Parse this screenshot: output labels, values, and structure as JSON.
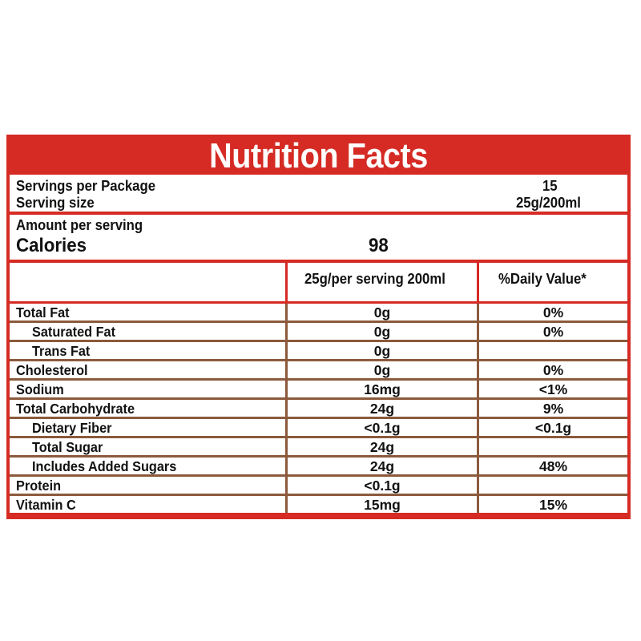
{
  "title": "Nutrition Facts",
  "servings": {
    "per_package_label": "Servings per Package",
    "per_package_value": "15",
    "size_label": "Serving size",
    "size_value": "25g/200ml"
  },
  "amount": {
    "label": "Amount per serving",
    "calories_label": "Calories",
    "calories_value": "98"
  },
  "columns": {
    "amount_header": "25g/per serving 200ml",
    "dv_header": "%Daily Value*"
  },
  "rows": [
    {
      "name": "Total Fat",
      "amount": "0g",
      "dv": "0%",
      "indent": false
    },
    {
      "name": "Saturated Fat",
      "amount": "0g",
      "dv": "0%",
      "indent": true
    },
    {
      "name": "Trans Fat",
      "amount": "0g",
      "dv": "",
      "indent": true
    },
    {
      "name": "Cholesterol",
      "amount": "0g",
      "dv": "0%",
      "indent": false
    },
    {
      "name": "Sodium",
      "amount": "16mg",
      "dv": "<1%",
      "indent": false
    },
    {
      "name": "Total Carbohydrate",
      "amount": "24g",
      "dv": "9%",
      "indent": false
    },
    {
      "name": "Dietary Fiber",
      "amount": "<0.1g",
      "dv": "<0.1g",
      "indent": true
    },
    {
      "name": "Total Sugar",
      "amount": "24g",
      "dv": "",
      "indent": true
    },
    {
      "name": "Includes Added Sugars",
      "amount": "24g",
      "dv": "48%",
      "indent": true
    },
    {
      "name": "Protein",
      "amount": "<0.1g",
      "dv": "",
      "indent": false
    },
    {
      "name": "Vitamin C",
      "amount": "15mg",
      "dv": "15%",
      "indent": false
    }
  ],
  "colors": {
    "header_red": "#d52b24",
    "row_separator_brown": "#8b5a3c"
  }
}
